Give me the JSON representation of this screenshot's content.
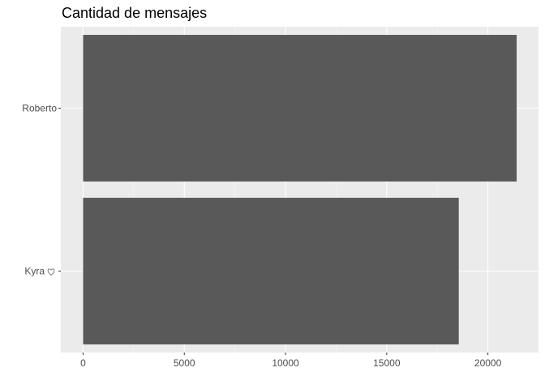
{
  "chart_data": {
    "type": "bar",
    "orientation": "horizontal",
    "title": "Cantidad de mensajes",
    "xlabel": "",
    "ylabel": "",
    "categories": [
      {
        "label": "Roberto",
        "icon": ""
      },
      {
        "label": "Kyra",
        "icon": "heart-icon"
      }
    ],
    "values": [
      21420,
      18560
    ],
    "xlim": [
      -1100,
      22500
    ],
    "xticks": [
      0,
      5000,
      10000,
      15000,
      20000
    ],
    "xtick_labels": [
      "0",
      "5000",
      "10000",
      "15000",
      "20000"
    ],
    "grid": true,
    "legend": "none"
  },
  "colors": {
    "panel": "#ebebeb",
    "grid_major": "#ffffff",
    "grid_minor": "#f5f5f5",
    "bar": "#595959",
    "tick": "#333333",
    "tick_label": "#4d4d4d",
    "title": "#000000"
  }
}
